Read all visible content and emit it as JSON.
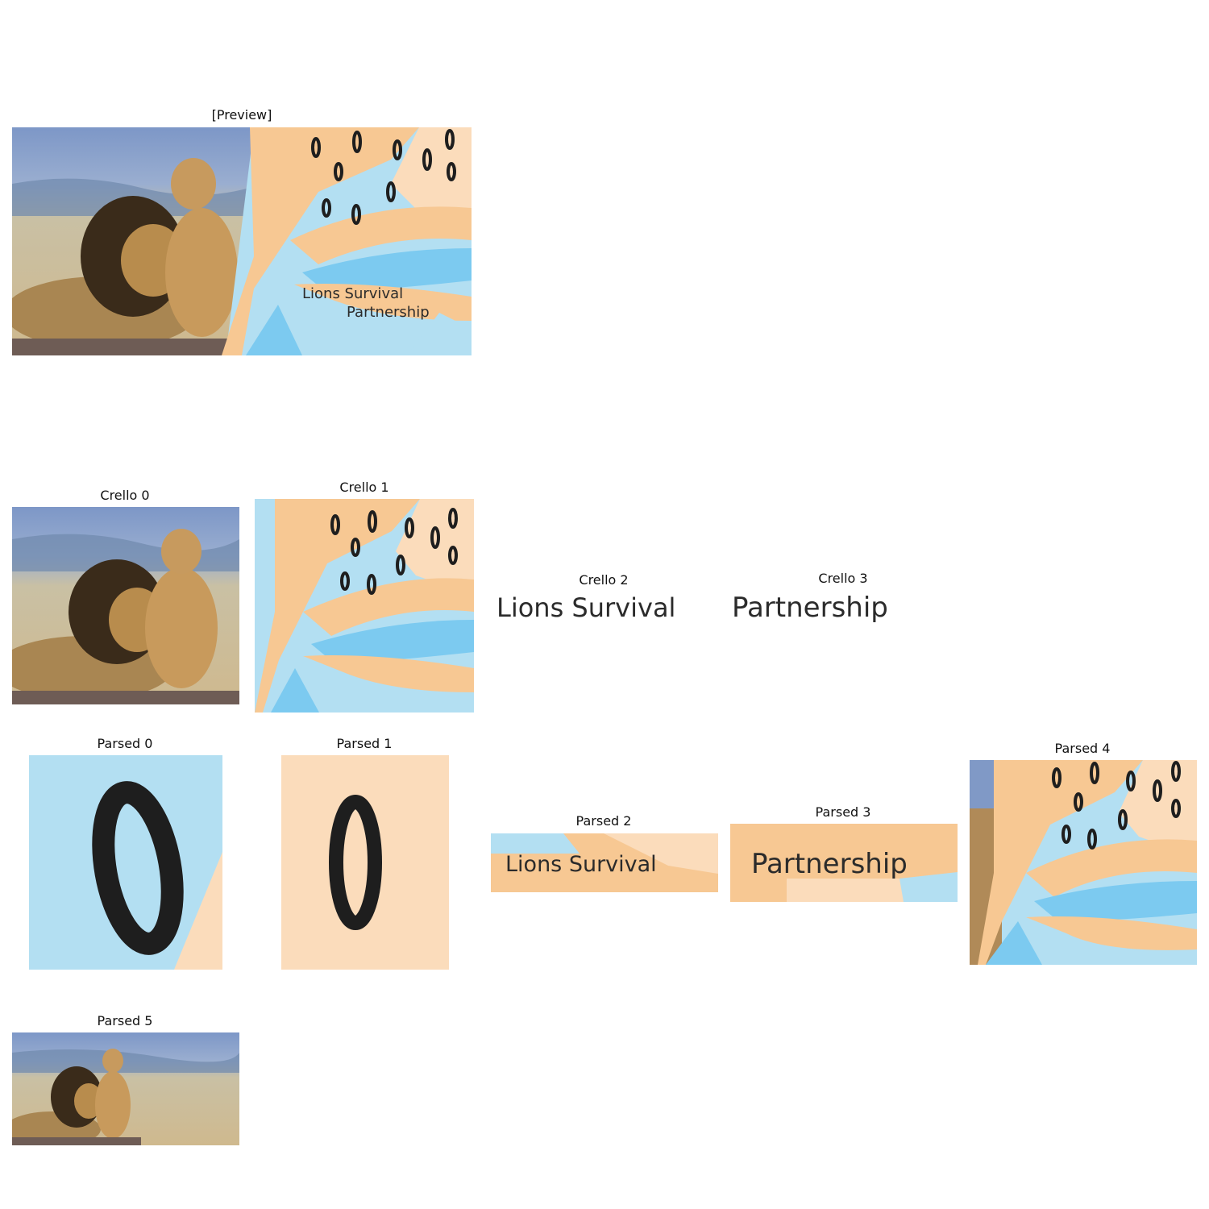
{
  "panels": {
    "preview": "[Preview]",
    "crello": [
      "Crello 0",
      "Crello 1",
      "Crello 2",
      "Crello 3"
    ],
    "parsed": [
      "Parsed 0",
      "Parsed 1",
      "Parsed 2",
      "Parsed 3",
      "Parsed 4",
      "Parsed 5"
    ]
  },
  "design_text": {
    "line1": "Lions Survival",
    "line2": "Partnership"
  },
  "parsed_glyph": "0",
  "colors": {
    "sky_blue": "#b3dff2",
    "bright_blue": "#7ccaf0",
    "peach": "#f7c893",
    "light_peach": "#fbdcbb",
    "ink": "#1e1e1e"
  },
  "images": {
    "photo": "lion-pair-photo",
    "pattern": "abstract-leaf-pattern"
  }
}
